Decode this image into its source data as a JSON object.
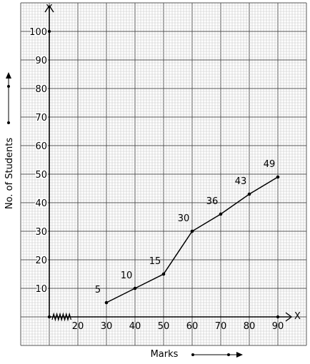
{
  "chart_data": {
    "type": "line",
    "xlabel": "Marks",
    "ylabel": "No. of Students",
    "x_axis_letter": "X",
    "y_axis_letter": "Y",
    "xlim": [
      10,
      95
    ],
    "ylim": [
      0,
      100
    ],
    "x_ticks": [
      20,
      30,
      40,
      50,
      60,
      70,
      80,
      90
    ],
    "y_ticks": [
      10,
      20,
      30,
      40,
      50,
      60,
      70,
      80,
      90,
      100
    ],
    "grid": true,
    "axis_break_x": true,
    "series": [
      {
        "x": [
          30,
          40,
          50,
          60,
          70,
          80,
          90
        ],
        "y": [
          5,
          10,
          15,
          30,
          36,
          43,
          49
        ],
        "labels": [
          "5",
          "10",
          "15",
          "30",
          "36",
          "43",
          "49"
        ]
      }
    ],
    "colors": {
      "line": "#000000",
      "grid_minor": "#c8c8c8",
      "grid_major": "#555555"
    }
  }
}
